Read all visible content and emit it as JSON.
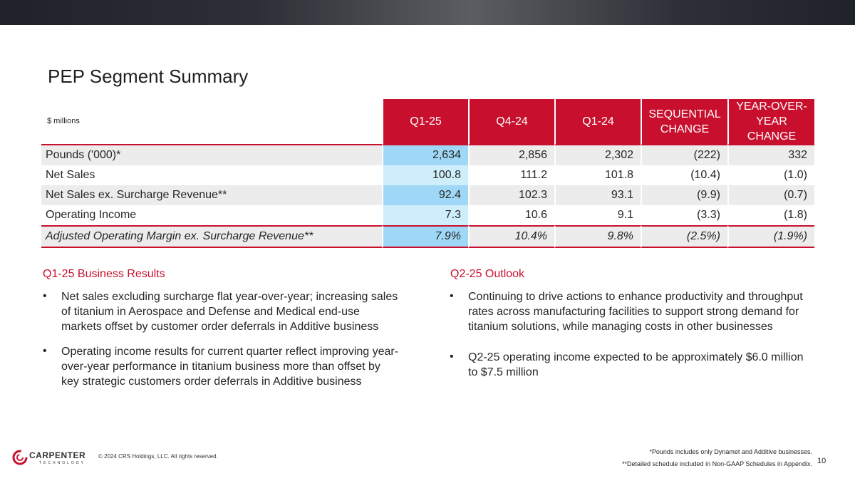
{
  "title": "PEP Segment Summary",
  "table": {
    "unit_label": "$ millions",
    "columns": [
      "Q1-25",
      "Q4-24",
      "Q1-24",
      "SEQUENTIAL CHANGE",
      "YEAR-OVER-YEAR CHANGE"
    ],
    "rows": [
      {
        "label": "Pounds ('000)*",
        "values": [
          "2,634",
          "2,856",
          "2,302",
          "(222)",
          "332"
        ]
      },
      {
        "label": "Net Sales",
        "values": [
          "100.8",
          "111.2",
          "101.8",
          "(10.4)",
          "(1.0)"
        ]
      },
      {
        "label": "Net Sales ex. Surcharge Revenue**",
        "values": [
          "92.4",
          "102.3",
          "93.1",
          "(9.9)",
          "(0.7)"
        ]
      },
      {
        "label": "Operating Income",
        "values": [
          "7.3",
          "10.6",
          "9.1",
          "(3.3)",
          "(1.8)"
        ]
      },
      {
        "label": "Adjusted Operating Margin ex. Surcharge Revenue**",
        "values": [
          "7.9%",
          "10.4%",
          "9.8%",
          "(2.5%)",
          "(1.9%)"
        ]
      }
    ]
  },
  "left_section": {
    "heading": "Q1-25 Business Results",
    "bullets": [
      "Net sales excluding surcharge flat year-over-year; increasing sales of titanium in Aerospace and Defense and Medical end-use markets offset by customer order deferrals in Additive business",
      "Operating income results for current quarter reflect improving year-over-year performance in titanium business more than offset by key strategic customers order deferrals in Additive business"
    ]
  },
  "right_section": {
    "heading": "Q2-25 Outlook",
    "bullets": [
      "Continuing to drive actions to enhance productivity and throughput rates across manufacturing facilities to support strong demand for titanium solutions, while managing costs in other businesses",
      "Q2-25 operating income expected to be approximately $6.0 million to $7.5 million"
    ]
  },
  "footer": {
    "logo_text": "CARPENTER",
    "logo_subtext": "TECHNOLOGY",
    "copyright": "© 2024 CRS Holdings, LLC. All rights reserved.",
    "footnote_1": "*Pounds includes only Dynamet and Additive businesses.",
    "footnote_2": "**Detailed schedule included in Non-GAAP Schedules in Appendix.",
    "page_number": "10"
  },
  "colors": {
    "accent_red": "#c8102e",
    "highlight_blue_dark": "#9fd8f6",
    "highlight_blue_light": "#cfeefc",
    "row_gray": "#ececec"
  },
  "icons": {
    "logo": "carpenter-swirl-logo"
  }
}
